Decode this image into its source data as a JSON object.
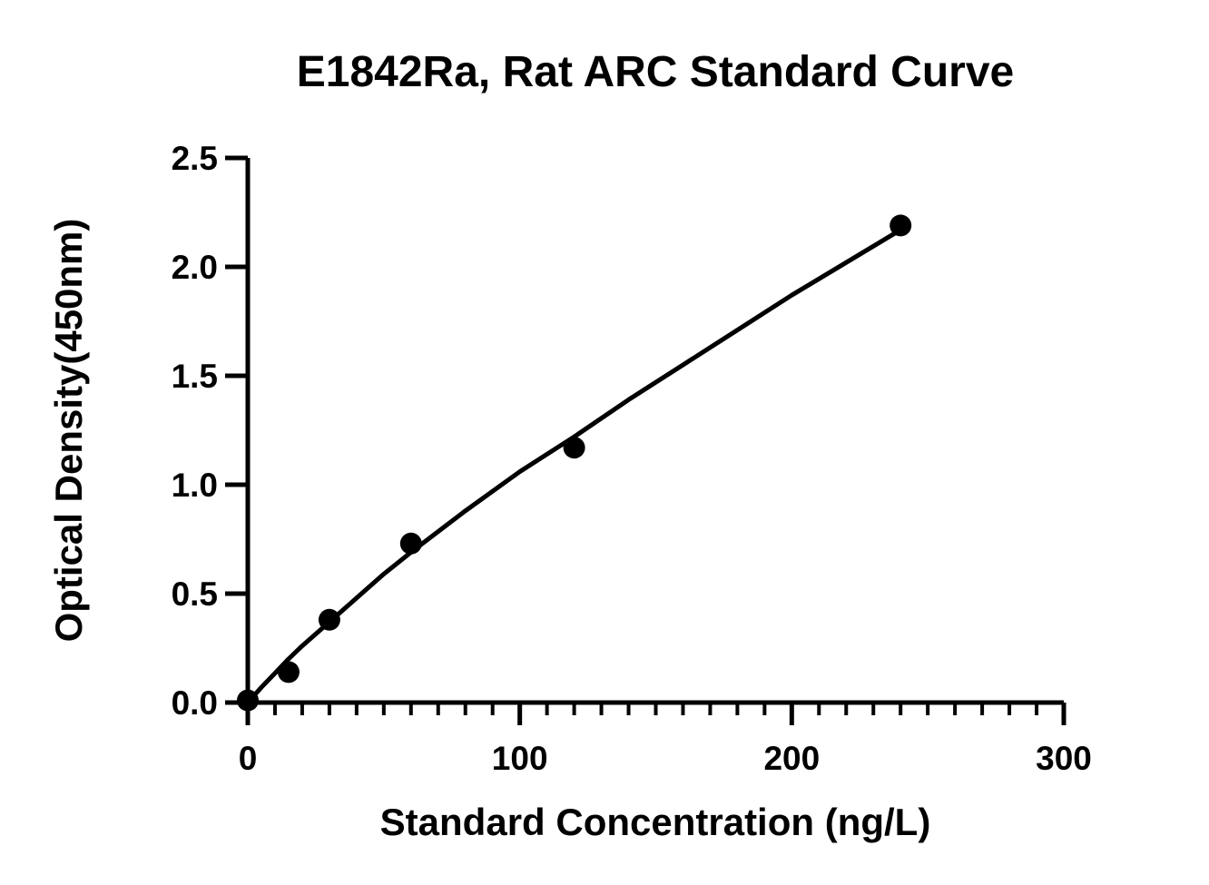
{
  "chart_data": {
    "type": "scatter",
    "title": "E1842Ra, Rat ARC Standard Curve",
    "xlabel": "Standard Concentration (ng/L)",
    "ylabel": "Optical Density(450nm)",
    "xlim": [
      0,
      300
    ],
    "ylim": [
      0,
      2.5
    ],
    "x_ticks": [
      0,
      100,
      200,
      300
    ],
    "x_tick_labels": [
      "0",
      "100",
      "200",
      "300"
    ],
    "y_ticks": [
      0,
      0.5,
      1.0,
      1.5,
      2.0,
      2.5
    ],
    "y_tick_labels": [
      "0.0",
      "0.5",
      "1.0",
      "1.5",
      "2.0",
      "2.5"
    ],
    "x_minor_tick_step": 10,
    "grid": false,
    "legend": "none",
    "points": {
      "x": [
        0,
        15,
        30,
        60,
        120,
        240
      ],
      "y": [
        0.01,
        0.14,
        0.38,
        0.73,
        1.17,
        2.19
      ]
    },
    "fit_curve": {
      "x": [
        0,
        5,
        10,
        15,
        20,
        30,
        40,
        50,
        60,
        80,
        100,
        120,
        140,
        160,
        180,
        200,
        220,
        240
      ],
      "y": [
        0.0,
        0.07,
        0.135,
        0.2,
        0.26,
        0.37,
        0.48,
        0.59,
        0.69,
        0.88,
        1.06,
        1.22,
        1.39,
        1.55,
        1.71,
        1.87,
        2.02,
        2.17
      ]
    },
    "colors": {
      "marks": "#000000",
      "background": "#ffffff"
    }
  }
}
